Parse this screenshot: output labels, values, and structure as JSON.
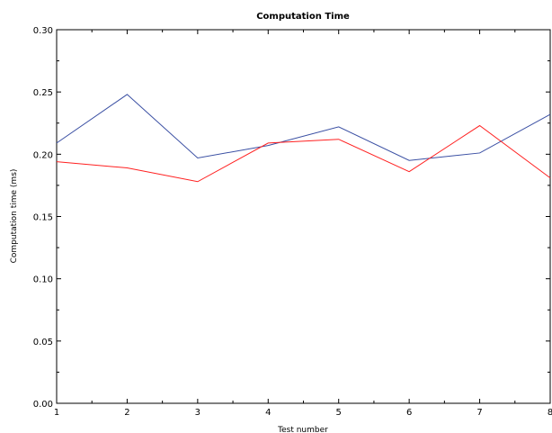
{
  "chart_data": {
    "type": "line",
    "title": "Computation Time",
    "xlabel": "Test number",
    "ylabel": "Computation time (ms)",
    "xlim": [
      1,
      8
    ],
    "ylim": [
      0,
      0.3
    ],
    "x": [
      1,
      2,
      3,
      4,
      5,
      6,
      7,
      8
    ],
    "x_ticks": [
      "1",
      "2",
      "3",
      "4",
      "5",
      "6",
      "7",
      "8"
    ],
    "y_ticks": [
      0.0,
      0.05,
      0.1,
      0.15,
      0.2,
      0.25,
      0.3
    ],
    "y_tick_labels": [
      "0.00",
      "0.05",
      "0.10",
      "0.15",
      "0.20",
      "0.25",
      "0.30"
    ],
    "grid": false,
    "legend": false,
    "series": [
      {
        "color": "#3a4fa3",
        "values": [
          0.209,
          0.248,
          0.197,
          0.207,
          0.222,
          0.195,
          0.201,
          0.232
        ]
      },
      {
        "color": "#ff2020",
        "values": [
          0.194,
          0.189,
          0.178,
          0.209,
          0.212,
          0.186,
          0.223,
          0.181
        ]
      }
    ]
  }
}
